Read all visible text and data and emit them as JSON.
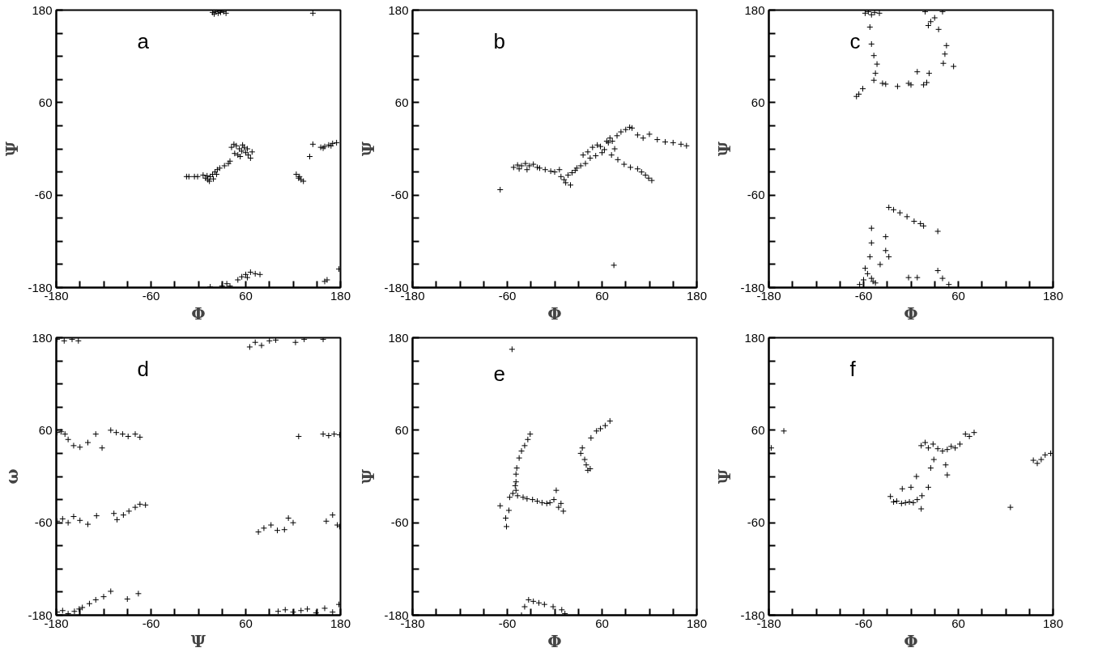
{
  "chart_data": [
    {
      "type": "scatter",
      "annotations": [
        "a"
      ],
      "xlabel": "Φ",
      "ylabel": "Ψ",
      "marker": "cross",
      "grid": false,
      "xlim": [
        -180,
        180
      ],
      "ylim": [
        -180,
        180
      ],
      "xticks": [
        -180,
        {
          "value": -150,
          "label": null
        },
        {
          "value": -120,
          "label": null
        },
        {
          "value": -90,
          "label": null
        },
        -60,
        {
          "value": -30,
          "label": null
        },
        {
          "value": 0,
          "label": null
        },
        {
          "value": 30,
          "label": null
        },
        60,
        {
          "value": 90,
          "label": null
        },
        {
          "value": 120,
          "label": null
        },
        {
          "value": 150,
          "label": null
        },
        180
      ],
      "yticks": [
        -180,
        {
          "value": -150,
          "label": null
        },
        {
          "value": -120,
          "label": null
        },
        {
          "value": -90,
          "label": null
        },
        -60,
        {
          "value": -30,
          "label": null
        },
        {
          "value": 0,
          "label": null
        },
        {
          "value": 30,
          "label": null
        },
        60,
        {
          "value": 90,
          "label": null
        },
        {
          "value": 120,
          "label": null
        },
        {
          "value": 150,
          "label": null
        },
        180
      ],
      "series": [
        {
          "color": "#000000",
          "x": [
            18,
            22,
            25,
            28,
            32,
            20,
            27,
            35,
            42,
            45,
            48,
            52,
            55,
            58,
            60,
            63,
            66,
            50,
            46,
            56,
            62,
            68,
            53,
            6,
            9,
            12,
            15,
            18,
            21,
            24,
            27,
            14,
            19,
            11,
            23,
            -15,
            -12,
            -5,
            -1,
            33,
            38,
            40,
            124,
            128,
            130,
            133,
            127,
            155,
            160,
            165,
            170,
            175,
            158,
            168,
            145,
            141,
            50,
            55,
            60,
            66,
            72,
            78,
            62,
            36,
            30,
            40,
            15,
            178,
            160,
            163,
            145
          ],
          "values": [
            177,
            178,
            176,
            177,
            178,
            175,
            179,
            176,
            2,
            6,
            4,
            0,
            -3,
            2,
            -5,
            -8,
            -12,
            -8,
            -6,
            5,
            0,
            -4,
            -10,
            -34,
            -38,
            -40,
            -36,
            -33,
            -30,
            -27,
            -25,
            -42,
            -39,
            -35,
            -33,
            -36,
            -36,
            -36,
            -36,
            -22,
            -19,
            -16,
            -33,
            -36,
            -40,
            -42,
            -38,
            2,
            3,
            5,
            7,
            8,
            1,
            4,
            6,
            -10,
            -170,
            -166,
            -163,
            -160,
            -162,
            -163,
            -167,
            -175,
            -178,
            -178,
            -179,
            -156,
            -172,
            -170,
            176
          ]
        }
      ]
    },
    {
      "type": "scatter",
      "annotations": [
        "b"
      ],
      "xlabel": "Φ",
      "ylabel": "Ψ",
      "marker": "cross",
      "grid": false,
      "xlim": [
        -180,
        180
      ],
      "ylim": [
        -180,
        180
      ],
      "xticks": [
        -180,
        {
          "value": -150,
          "label": null
        },
        {
          "value": -120,
          "label": null
        },
        {
          "value": -90,
          "label": null
        },
        -60,
        {
          "value": -30,
          "label": null
        },
        {
          "value": 0,
          "label": null
        },
        {
          "value": 30,
          "label": null
        },
        60,
        {
          "value": 90,
          "label": null
        },
        {
          "value": 120,
          "label": null
        },
        {
          "value": 150,
          "label": null
        },
        180
      ],
      "yticks": [
        -180,
        {
          "value": -150,
          "label": null
        },
        {
          "value": -120,
          "label": null
        },
        {
          "value": -90,
          "label": null
        },
        -60,
        {
          "value": -30,
          "label": null
        },
        {
          "value": 0,
          "label": null
        },
        {
          "value": 30,
          "label": null
        },
        60,
        {
          "value": 90,
          "label": null
        },
        {
          "value": 120,
          "label": null
        },
        {
          "value": 150,
          "label": null
        },
        180
      ],
      "series": [
        {
          "color": "#000000",
          "x": [
            -69,
            -52,
            -47,
            -42,
            -37,
            -32,
            -27,
            -22,
            -45,
            -35,
            -19,
            -12,
            -5,
            0,
            6,
            8,
            12,
            17,
            22,
            26,
            14,
            20,
            28,
            33,
            39,
            36,
            42,
            48,
            54,
            58,
            63,
            68,
            73,
            76,
            45,
            52,
            60,
            66,
            70,
            79,
            84,
            90,
            95,
            98,
            105,
            112,
            120,
            130,
            140,
            150,
            160,
            167,
            72,
            80,
            88,
            96,
            105,
            110,
            115,
            119,
            123,
            75
          ],
          "values": [
            -53,
            -24,
            -21,
            -22,
            -19,
            -22,
            -20,
            -24,
            -26,
            -27,
            -25,
            -27,
            -29,
            -30,
            -27,
            -36,
            -40,
            -34,
            -31,
            -28,
            -44,
            -47,
            -25,
            -22,
            -19,
            -8,
            -4,
            2,
            5,
            3,
            -1,
            8,
            10,
            0,
            -12,
            -9,
            -5,
            10,
            14,
            17,
            22,
            25,
            28,
            27,
            18,
            14,
            19,
            12,
            9,
            8,
            6,
            4,
            -8,
            -14,
            -20,
            -24,
            -26,
            -30,
            -34,
            -38,
            -41,
            -151
          ]
        }
      ]
    },
    {
      "type": "scatter",
      "annotations": [
        "c"
      ],
      "xlabel": "Φ",
      "ylabel": "Ψ",
      "marker": "cross",
      "grid": false,
      "xlim": [
        -180,
        180
      ],
      "ylim": [
        -180,
        180
      ],
      "xticks": [
        -180,
        {
          "value": -150,
          "label": null
        },
        {
          "value": -120,
          "label": null
        },
        {
          "value": -90,
          "label": null
        },
        -60,
        {
          "value": -30,
          "label": null
        },
        {
          "value": 0,
          "label": null
        },
        {
          "value": 30,
          "label": null
        },
        60,
        {
          "value": 90,
          "label": null
        },
        {
          "value": 120,
          "label": null
        },
        {
          "value": 150,
          "label": null
        },
        180
      ],
      "yticks": [
        -180,
        {
          "value": -150,
          "label": null
        },
        {
          "value": -120,
          "label": null
        },
        {
          "value": -90,
          "label": null
        },
        -60,
        {
          "value": -30,
          "label": null
        },
        {
          "value": 0,
          "label": null
        },
        {
          "value": 30,
          "label": null
        },
        60,
        {
          "value": 90,
          "label": null
        },
        {
          "value": 120,
          "label": null
        },
        {
          "value": 150,
          "label": null
        },
        180
      ],
      "series": [
        {
          "color": "#000000",
          "x": [
            -58,
            -54,
            -50,
            -46,
            -40,
            -52,
            -50,
            -47,
            -43,
            -45,
            -47,
            -69,
            -66,
            -61,
            -36,
            -32,
            -17,
            -3,
            0,
            16,
            20,
            23,
            8,
            41,
            54,
            43,
            45,
            18,
            25,
            30,
            40,
            35,
            22,
            -28,
            -22,
            -14,
            -5,
            4,
            12,
            16,
            34,
            -50,
            -50,
            -32,
            -32,
            -65,
            -60,
            -55,
            -50,
            -45,
            -39,
            -58,
            -52,
            -48,
            -28,
            -3,
            8,
            34,
            40,
            48
          ],
          "values": [
            176,
            178,
            174,
            177,
            176,
            158,
            136,
            121,
            110,
            98,
            89,
            68,
            71,
            78,
            85,
            84,
            81,
            85,
            83,
            83,
            86,
            98,
            100,
            111,
            107,
            123,
            134,
            178,
            165,
            170,
            178,
            155,
            160,
            -76,
            -79,
            -83,
            -88,
            -94,
            -97,
            -100,
            -107,
            -103,
            -122,
            -114,
            -132,
            -176,
            -170,
            -162,
            -168,
            -174,
            -150,
            -155,
            -140,
            -172,
            -140,
            -167,
            -167,
            -158,
            -168,
            -176
          ]
        }
      ]
    },
    {
      "type": "scatter",
      "annotations": [
        "d"
      ],
      "xlabel": "Ψ",
      "ylabel": "ω",
      "marker": "cross",
      "grid": false,
      "xlim": [
        -180,
        180
      ],
      "ylim": [
        -180,
        180
      ],
      "xticks": [
        -180,
        {
          "value": -150,
          "label": null
        },
        {
          "value": -120,
          "label": null
        },
        {
          "value": -90,
          "label": null
        },
        -60,
        {
          "value": -30,
          "label": null
        },
        {
          "value": 0,
          "label": null
        },
        {
          "value": 30,
          "label": null
        },
        60,
        {
          "value": 90,
          "label": null
        },
        {
          "value": 120,
          "label": null
        },
        {
          "value": 150,
          "label": null
        },
        180
      ],
      "yticks": [
        -180,
        {
          "value": -150,
          "label": null
        },
        {
          "value": -120,
          "label": null
        },
        {
          "value": -90,
          "label": null
        },
        -60,
        {
          "value": -30,
          "label": null
        },
        {
          "value": 0,
          "label": null
        },
        {
          "value": 30,
          "label": null
        },
        60,
        {
          "value": 90,
          "label": null
        },
        {
          "value": 120,
          "label": null
        },
        {
          "value": 150,
          "label": null
        },
        180
      ],
      "series": [
        {
          "color": "#000000",
          "x": [
            -179,
            -170,
            -160,
            -152,
            65,
            72,
            80,
            90,
            98,
            123,
            134,
            158,
            -179,
            -174,
            -169,
            -165,
            -158,
            -150,
            -140,
            -130,
            -122,
            -111,
            -104,
            -96,
            -89,
            -80,
            -74,
            127,
            158,
            165,
            172,
            179,
            -179,
            -172,
            -165,
            -158,
            -150,
            -140,
            -129,
            -107,
            -103,
            -95,
            -88,
            -80,
            -74,
            -67,
            76,
            83,
            92,
            100,
            109,
            114,
            120,
            162,
            170,
            176,
            179,
            -179,
            -172,
            -165,
            -157,
            -151,
            -147,
            -138,
            -130,
            -120,
            -111,
            -90,
            -76,
            101,
            110,
            120,
            130,
            138,
            149,
            160,
            170,
            178
          ],
          "values": [
            178,
            176,
            178,
            176,
            168,
            174,
            170,
            176,
            177,
            174,
            178,
            178,
            57,
            58,
            55,
            48,
            40,
            38,
            44,
            55,
            37,
            60,
            57,
            55,
            52,
            55,
            51,
            52,
            55,
            53,
            55,
            54,
            -58,
            -55,
            -60,
            -52,
            -57,
            -62,
            -51,
            -48,
            -56,
            -50,
            -45,
            -40,
            -36,
            -37,
            -72,
            -67,
            -63,
            -70,
            -69,
            -54,
            -60,
            -58,
            -50,
            -63,
            -65,
            -176,
            -174,
            -178,
            -175,
            -172,
            -170,
            -165,
            -160,
            -156,
            -149,
            -159,
            -152,
            -175,
            -173,
            -176,
            -174,
            -172,
            -177,
            -171,
            -176,
            -166
          ]
        }
      ]
    },
    {
      "type": "scatter",
      "annotations": [
        "e"
      ],
      "xlabel": "Φ",
      "ylabel": "Ψ",
      "marker": "cross",
      "grid": false,
      "xlim": [
        -180,
        180
      ],
      "ylim": [
        -180,
        180
      ],
      "xticks": [
        -180,
        {
          "value": -150,
          "label": null
        },
        {
          "value": -120,
          "label": null
        },
        {
          "value": -90,
          "label": null
        },
        -60,
        {
          "value": -30,
          "label": null
        },
        {
          "value": 0,
          "label": null
        },
        {
          "value": 30,
          "label": null
        },
        60,
        {
          "value": 90,
          "label": null
        },
        {
          "value": 120,
          "label": null
        },
        {
          "value": 150,
          "label": null
        },
        180
      ],
      "yticks": [
        -180,
        {
          "value": -150,
          "label": null
        },
        {
          "value": -120,
          "label": null
        },
        {
          "value": -90,
          "label": null
        },
        -60,
        {
          "value": -30,
          "label": null
        },
        {
          "value": 0,
          "label": null
        },
        {
          "value": 30,
          "label": null
        },
        60,
        {
          "value": 90,
          "label": null
        },
        {
          "value": 120,
          "label": null
        },
        {
          "value": 150,
          "label": null
        },
        180
      ],
      "series": [
        {
          "color": "#000000",
          "x": [
            -31,
            -34,
            -38,
            -42,
            -45,
            -48,
            -49,
            -49,
            -49,
            -50,
            -53,
            -57,
            -47,
            -40,
            -35,
            -28,
            -22,
            -16,
            -10,
            -6,
            -1,
            2,
            5,
            8,
            11,
            -69,
            -62,
            -61,
            -58,
            35,
            33,
            38,
            40,
            42,
            45,
            46,
            53,
            58,
            64,
            70,
            -54,
            -27,
            -38,
            -42,
            -33,
            -20,
            -13,
            -2,
            9,
            13
          ],
          "values": [
            55,
            48,
            40,
            33,
            24,
            11,
            3,
            -7,
            -18,
            -12,
            -22,
            -27,
            -25,
            -27,
            -29,
            -30,
            -32,
            -34,
            -35,
            -34,
            -30,
            -18,
            -40,
            -35,
            -45,
            -38,
            -54,
            -65,
            -44,
            37,
            30,
            22,
            15,
            8,
            10,
            50,
            59,
            62,
            66,
            72,
            165,
            -162,
            -169,
            -180,
            -160,
            -164,
            -166,
            -169,
            -173,
            -178
          ]
        }
      ]
    },
    {
      "type": "scatter",
      "annotations": [
        "f"
      ],
      "xlabel": "Φ",
      "ylabel": "Ψ",
      "marker": "cross",
      "grid": false,
      "xlim": [
        -180,
        180
      ],
      "ylim": [
        -180,
        180
      ],
      "xticks": [
        -180,
        {
          "value": -150,
          "label": null
        },
        {
          "value": -120,
          "label": null
        },
        {
          "value": -90,
          "label": null
        },
        -60,
        {
          "value": -30,
          "label": null
        },
        {
          "value": 0,
          "label": null
        },
        {
          "value": 30,
          "label": null
        },
        60,
        {
          "value": 90,
          "label": null
        },
        {
          "value": 120,
          "label": null
        },
        {
          "value": 150,
          "label": null
        },
        180
      ],
      "yticks": [
        -180,
        {
          "value": -150,
          "label": null
        },
        {
          "value": -120,
          "label": null
        },
        {
          "value": -90,
          "label": null
        },
        -60,
        {
          "value": -30,
          "label": null
        },
        {
          "value": 0,
          "label": null
        },
        {
          "value": 30,
          "label": null
        },
        60,
        {
          "value": 90,
          "label": null
        },
        {
          "value": 120,
          "label": null
        },
        {
          "value": 150,
          "label": null
        },
        180
      ],
      "series": [
        {
          "color": "#000000",
          "x": [
            -161,
            -177,
            13,
            18,
            22,
            28,
            34,
            40,
            46,
            51,
            56,
            62,
            69,
            74,
            80,
            29,
            25,
            44,
            46,
            7,
            -26,
            -22,
            -18,
            -12,
            -7,
            -2,
            3,
            8,
            14,
            22,
            -11,
            0,
            13,
            126,
            155,
            160,
            165,
            170,
            177
          ],
          "values": [
            59,
            37,
            40,
            44,
            37,
            42,
            36,
            33,
            35,
            39,
            37,
            42,
            55,
            52,
            57,
            22,
            11,
            15,
            2,
            0,
            -26,
            -33,
            -32,
            -35,
            -34,
            -33,
            -34,
            -30,
            -25,
            -14,
            -16,
            -14,
            -42,
            -40,
            21,
            17,
            22,
            28,
            30
          ]
        }
      ]
    }
  ]
}
